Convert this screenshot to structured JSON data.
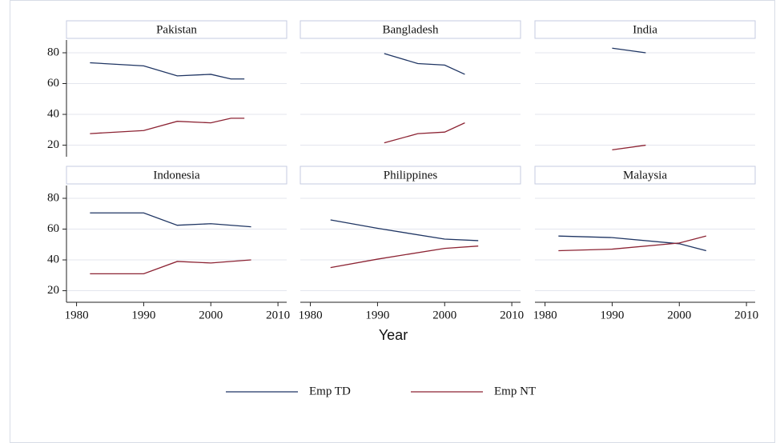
{
  "xlabel": "Year",
  "chart_data": [
    {
      "type": "line",
      "title": "Pakistan",
      "x": [
        1982,
        1990,
        1995,
        2000,
        2003,
        2005
      ],
      "series": [
        {
          "name": "Emp TD",
          "color": "#1f3563",
          "values": [
            73.5,
            71.5,
            65,
            66,
            63,
            63
          ]
        },
        {
          "name": "Emp NT",
          "color": "#8c2333",
          "values": [
            27.5,
            29.5,
            35.5,
            34.5,
            37.5,
            37.5
          ]
        }
      ],
      "xlim": [
        1978.5,
        2011.3
      ],
      "ylim": [
        12.5,
        88.3
      ],
      "xticks": [
        1980,
        1990,
        2000,
        2010
      ],
      "yticks": [
        20,
        40,
        60,
        80
      ],
      "grid": true
    },
    {
      "type": "line",
      "title": "Bangladesh",
      "x": [
        1991,
        1996,
        2000,
        2003
      ],
      "series": [
        {
          "name": "Emp TD",
          "color": "#1f3563",
          "values": [
            79.5,
            73,
            72,
            66
          ]
        },
        {
          "name": "Emp NT",
          "color": "#8c2333",
          "values": [
            21.5,
            27.5,
            28.5,
            34.5
          ]
        }
      ],
      "xlim": [
        1978.5,
        2011.3
      ],
      "ylim": [
        12.5,
        88.3
      ],
      "xticks": [
        1980,
        1990,
        2000,
        2010
      ],
      "yticks": [
        20,
        40,
        60,
        80
      ],
      "grid": true
    },
    {
      "type": "line",
      "title": "India",
      "x": [
        1990,
        1995
      ],
      "series": [
        {
          "name": "Emp TD",
          "color": "#1f3563",
          "values": [
            83,
            80
          ]
        },
        {
          "name": "Emp NT",
          "color": "#8c2333",
          "values": [
            17,
            20
          ]
        }
      ],
      "xlim": [
        1978.5,
        2011.3
      ],
      "ylim": [
        12.5,
        88.3
      ],
      "xticks": [
        1980,
        1990,
        2000,
        2010
      ],
      "yticks": [
        20,
        40,
        60,
        80
      ],
      "grid": true
    },
    {
      "type": "line",
      "title": "Indonesia",
      "x": [
        1982,
        1990,
        1995,
        2000,
        2006
      ],
      "series": [
        {
          "name": "Emp TD",
          "color": "#1f3563",
          "values": [
            70.5,
            70.5,
            62.5,
            63.5,
            61.5
          ]
        },
        {
          "name": "Emp NT",
          "color": "#8c2333",
          "values": [
            31,
            31,
            39,
            38,
            40
          ]
        }
      ],
      "xlim": [
        1978.5,
        2011.3
      ],
      "ylim": [
        12.5,
        88.3
      ],
      "xticks": [
        1980,
        1990,
        2000,
        2010
      ],
      "yticks": [
        20,
        40,
        60,
        80
      ],
      "grid": true
    },
    {
      "type": "line",
      "title": "Philippines",
      "x": [
        1983,
        1990,
        2000,
        2005
      ],
      "series": [
        {
          "name": "Emp TD",
          "color": "#1f3563",
          "values": [
            66,
            60.5,
            53.5,
            52.5
          ]
        },
        {
          "name": "Emp NT",
          "color": "#8c2333",
          "values": [
            35,
            40.5,
            47.5,
            49
          ]
        }
      ],
      "xlim": [
        1978.5,
        2011.3
      ],
      "ylim": [
        12.5,
        88.3
      ],
      "xticks": [
        1980,
        1990,
        2000,
        2010
      ],
      "yticks": [
        20,
        40,
        60,
        80
      ],
      "grid": true
    },
    {
      "type": "line",
      "title": "Malaysia",
      "x": [
        1982,
        1990,
        2000,
        2004
      ],
      "series": [
        {
          "name": "Emp TD",
          "color": "#1f3563",
          "values": [
            55.5,
            54.5,
            50.5,
            46
          ]
        },
        {
          "name": "Emp NT",
          "color": "#8c2333",
          "values": [
            46,
            47,
            51,
            55.5
          ]
        }
      ],
      "xlim": [
        1978.5,
        2011.3
      ],
      "ylim": [
        12.5,
        88.3
      ],
      "xticks": [
        1980,
        1990,
        2000,
        2010
      ],
      "yticks": [
        20,
        40,
        60,
        80
      ],
      "grid": true
    }
  ]
}
